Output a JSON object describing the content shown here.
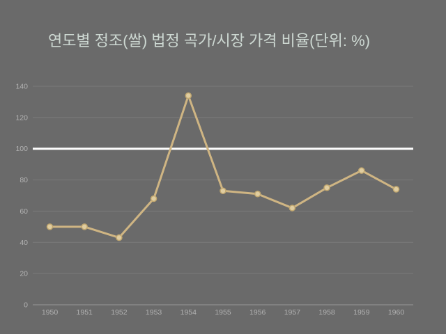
{
  "title": "연도별 정조(쌀) 법정 곡가/시장 가격 비율(단위: %)",
  "colors": {
    "background": "#6a6a6a",
    "title": "#cdd8d2",
    "axis_label": "#b2b2b2",
    "grid_line": "#7b7b7b",
    "axis_line": "#989898",
    "reference_line": "#ffffff",
    "series_line": "#cfb583",
    "marker_fill": "#e0cda0",
    "marker_stroke": "#c2a870"
  },
  "chart_data": {
    "type": "line",
    "title": "연도별 정조(쌀) 법정 곡가/시장 가격 비율(단위: %)",
    "categories": [
      "1950",
      "1951",
      "1952",
      "1953",
      "1954",
      "1955",
      "1956",
      "1957",
      "1958",
      "1959",
      "1960"
    ],
    "values": [
      50,
      50,
      43,
      68,
      134,
      73,
      71,
      62,
      75,
      86,
      74
    ],
    "xlabel": "",
    "ylabel": "",
    "ylim": [
      0,
      140
    ],
    "y_ticks": [
      0,
      20,
      40,
      60,
      80,
      100,
      120,
      140
    ],
    "reference_line": 100,
    "grid": true,
    "legend": false,
    "markers": true
  }
}
